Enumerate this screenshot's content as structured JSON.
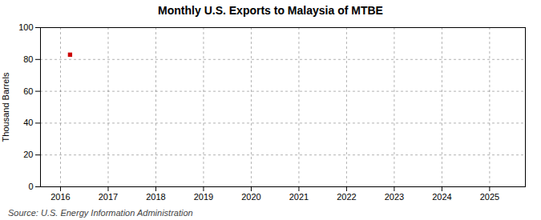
{
  "chart_data": {
    "type": "scatter",
    "title": "Monthly U.S. Exports to Malaysia of MTBE",
    "ylabel": "Thousand Barrels",
    "source": "Source: U.S. Energy Information Administration",
    "x": [
      2016.2
    ],
    "values": [
      83
    ],
    "color": "#cc0000",
    "marker": "square",
    "xlim": [
      2015.58,
      2025.75
    ],
    "xticks": [
      2016,
      2017,
      2018,
      2019,
      2020,
      2021,
      2022,
      2023,
      2024,
      2025
    ],
    "ylim": [
      0,
      100
    ],
    "yticks": [
      0,
      20,
      40,
      60,
      80,
      100
    ],
    "grid": true
  }
}
